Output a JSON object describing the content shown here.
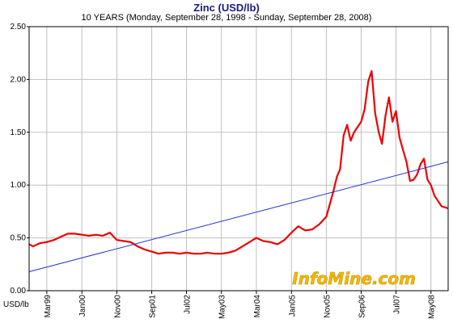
{
  "chart_data": {
    "type": "line",
    "title": "Zinc (USD/lb)",
    "subtitle": "10 YEARS (Monday, September 28, 1998  -  Sunday, September 28, 2008)",
    "ylabel": "USD/lb",
    "xlabel": "",
    "ylim": [
      0,
      2.5
    ],
    "xlim": [
      "1998-09-28",
      "2008-09-28"
    ],
    "yticks": [
      "0.00",
      "0.50",
      "1.00",
      "1.50",
      "2.00",
      "2.50"
    ],
    "xticks": [
      "Mar99",
      "Jan00",
      "Nov00",
      "Sep01",
      "Jul02",
      "May03",
      "Mar04",
      "Jan05",
      "Nov05",
      "Sep06",
      "Jul07",
      "May08"
    ],
    "grid": true,
    "watermark": "InfoMine.com",
    "colors": {
      "price": "#ee0000",
      "trend": "#2233cc",
      "grid": "#c0c0c0",
      "title": "#1a1a80",
      "watermark": "#f2b800"
    },
    "series": [
      {
        "kind": "price",
        "x": [
          "1998-09-28",
          "1998-11-01",
          "1999-01-01",
          "1999-03-01",
          "1999-05-01",
          "1999-07-01",
          "1999-09-01",
          "1999-11-01",
          "2000-01-01",
          "2000-03-01",
          "2000-05-01",
          "2000-07-01",
          "2000-09-01",
          "2000-11-01",
          "2001-01-01",
          "2001-03-01",
          "2001-05-01",
          "2001-07-01",
          "2001-09-01",
          "2001-11-01",
          "2002-01-01",
          "2002-03-01",
          "2002-05-01",
          "2002-07-01",
          "2002-09-01",
          "2002-11-01",
          "2003-01-01",
          "2003-03-01",
          "2003-05-01",
          "2003-07-01",
          "2003-09-01",
          "2003-11-01",
          "2004-01-01",
          "2004-03-01",
          "2004-05-01",
          "2004-07-01",
          "2004-09-01",
          "2004-11-01",
          "2005-01-01",
          "2005-03-01",
          "2005-05-01",
          "2005-07-01",
          "2005-09-01",
          "2005-11-01",
          "2006-01-01",
          "2006-02-01",
          "2006-03-01",
          "2006-04-01",
          "2006-05-01",
          "2006-06-01",
          "2006-07-01",
          "2006-08-01",
          "2006-09-01",
          "2006-10-01",
          "2006-11-01",
          "2006-12-01",
          "2007-01-01",
          "2007-02-01",
          "2007-03-01",
          "2007-04-01",
          "2007-05-01",
          "2007-06-01",
          "2007-07-01",
          "2007-08-01",
          "2007-09-01",
          "2007-10-01",
          "2007-11-01",
          "2007-12-01",
          "2008-01-01",
          "2008-02-01",
          "2008-03-01",
          "2008-04-01",
          "2008-05-01",
          "2008-06-01",
          "2008-07-01",
          "2008-08-01",
          "2008-09-28"
        ],
        "y": [
          0.44,
          0.42,
          0.45,
          0.46,
          0.48,
          0.51,
          0.54,
          0.54,
          0.53,
          0.52,
          0.53,
          0.52,
          0.55,
          0.48,
          0.47,
          0.46,
          0.42,
          0.39,
          0.37,
          0.35,
          0.36,
          0.36,
          0.35,
          0.36,
          0.35,
          0.35,
          0.36,
          0.35,
          0.35,
          0.36,
          0.38,
          0.42,
          0.46,
          0.5,
          0.47,
          0.46,
          0.44,
          0.48,
          0.55,
          0.61,
          0.57,
          0.58,
          0.63,
          0.7,
          0.94,
          1.08,
          1.15,
          1.47,
          1.57,
          1.42,
          1.5,
          1.55,
          1.6,
          1.72,
          1.98,
          2.08,
          1.68,
          1.5,
          1.39,
          1.66,
          1.83,
          1.6,
          1.7,
          1.45,
          1.33,
          1.22,
          1.04,
          1.05,
          1.1,
          1.2,
          1.25,
          1.05,
          1.0,
          0.9,
          0.85,
          0.8,
          0.78
        ]
      },
      {
        "kind": "trend",
        "x": [
          "1998-09-28",
          "2008-09-28"
        ],
        "y": [
          0.18,
          1.22
        ]
      }
    ]
  }
}
